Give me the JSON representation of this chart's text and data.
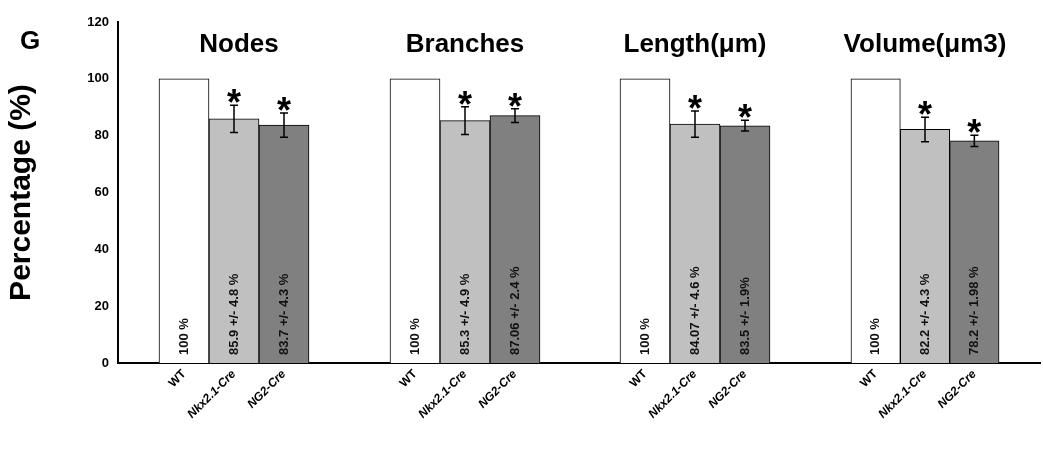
{
  "chart_data": [
    {
      "type": "bar",
      "title": "Nodes",
      "ylabel": "Percentage (%)",
      "categories": [
        "WT",
        "Nkx2.1-Cre",
        "NG2-Cre"
      ],
      "values": [
        100,
        85.9,
        83.7
      ],
      "errors": [
        null,
        4.8,
        4.3
      ],
      "colors": [
        "#ffffff",
        "#c0c0c0",
        "#808080"
      ],
      "value_labels": [
        "100 %",
        "85.9 +/- 4.8 %",
        "83.7 +/- 4.3 %"
      ],
      "ylim": [
        0,
        120
      ],
      "yticks": [
        0,
        20,
        40,
        60,
        80,
        100,
        120
      ],
      "grid": false,
      "annotations": [
        "G",
        {
          "text": "*",
          "x": "Nkx2.1-Cre",
          "y": 90.7
        },
        {
          "text": "*",
          "x": "NG2-Cre",
          "y": 88.0
        }
      ]
    },
    {
      "type": "bar",
      "title": "Branches",
      "categories": [
        "WT",
        "Nkx2.1-Cre",
        "NG2-Cre"
      ],
      "values": [
        100,
        85.3,
        87.06
      ],
      "errors": [
        null,
        4.9,
        2.4
      ],
      "colors": [
        "#ffffff",
        "#c0c0c0",
        "#808080"
      ],
      "value_labels": [
        "100 %",
        "85.3 +/- 4.9 %",
        "87.06 +/- 2.4 %"
      ],
      "ylim": [
        0,
        120
      ],
      "tick_labels": "x",
      "grid": false,
      "annotations": [
        {
          "text": "*",
          "x": "Nkx2.1-Cre",
          "y": 90.2
        },
        {
          "text": "*",
          "x": "NG2-Cre",
          "y": 89.46
        }
      ]
    },
    {
      "type": "bar",
      "title": "Length(μm)",
      "categories": [
        "WT",
        "Nkx2.1-Cre",
        "NG2-Cre"
      ],
      "values": [
        100,
        84.07,
        83.5
      ],
      "errors": [
        null,
        4.6,
        1.9
      ],
      "colors": [
        "#ffffff",
        "#c0c0c0",
        "#808080"
      ],
      "value_labels": [
        "100 %",
        "84.07 +/- 4.6 %",
        "83.5 +/- 1.9%"
      ],
      "ylim": [
        0,
        120
      ],
      "tick_labels": "x",
      "grid": false,
      "annotations": [
        {
          "text": "*",
          "x": "Nkx2.1-Cre",
          "y": 88.67
        },
        {
          "text": "*",
          "x": "NG2-Cre",
          "y": 85.4
        }
      ]
    },
    {
      "type": "bar",
      "title": "Volume(μm3)",
      "categories": [
        "WT",
        "Nkx2.1-Cre",
        "NG2-Cre"
      ],
      "values": [
        100,
        82.2,
        78.2
      ],
      "errors": [
        null,
        4.3,
        1.98
      ],
      "colors": [
        "#ffffff",
        "#c0c0c0",
        "#808080"
      ],
      "value_labels": [
        "100 %",
        "82.2 +/- 4.3 %",
        "78.2 +/- 1.98 %"
      ],
      "ylim": [
        0,
        120
      ],
      "tick_labels": "x",
      "grid": false,
      "annotations": [
        {
          "text": "*",
          "x": "Nkx2.1-Cre",
          "y": 86.5
        },
        {
          "text": "*",
          "x": "NG2-Cre",
          "y": 80.18
        }
      ]
    }
  ]
}
